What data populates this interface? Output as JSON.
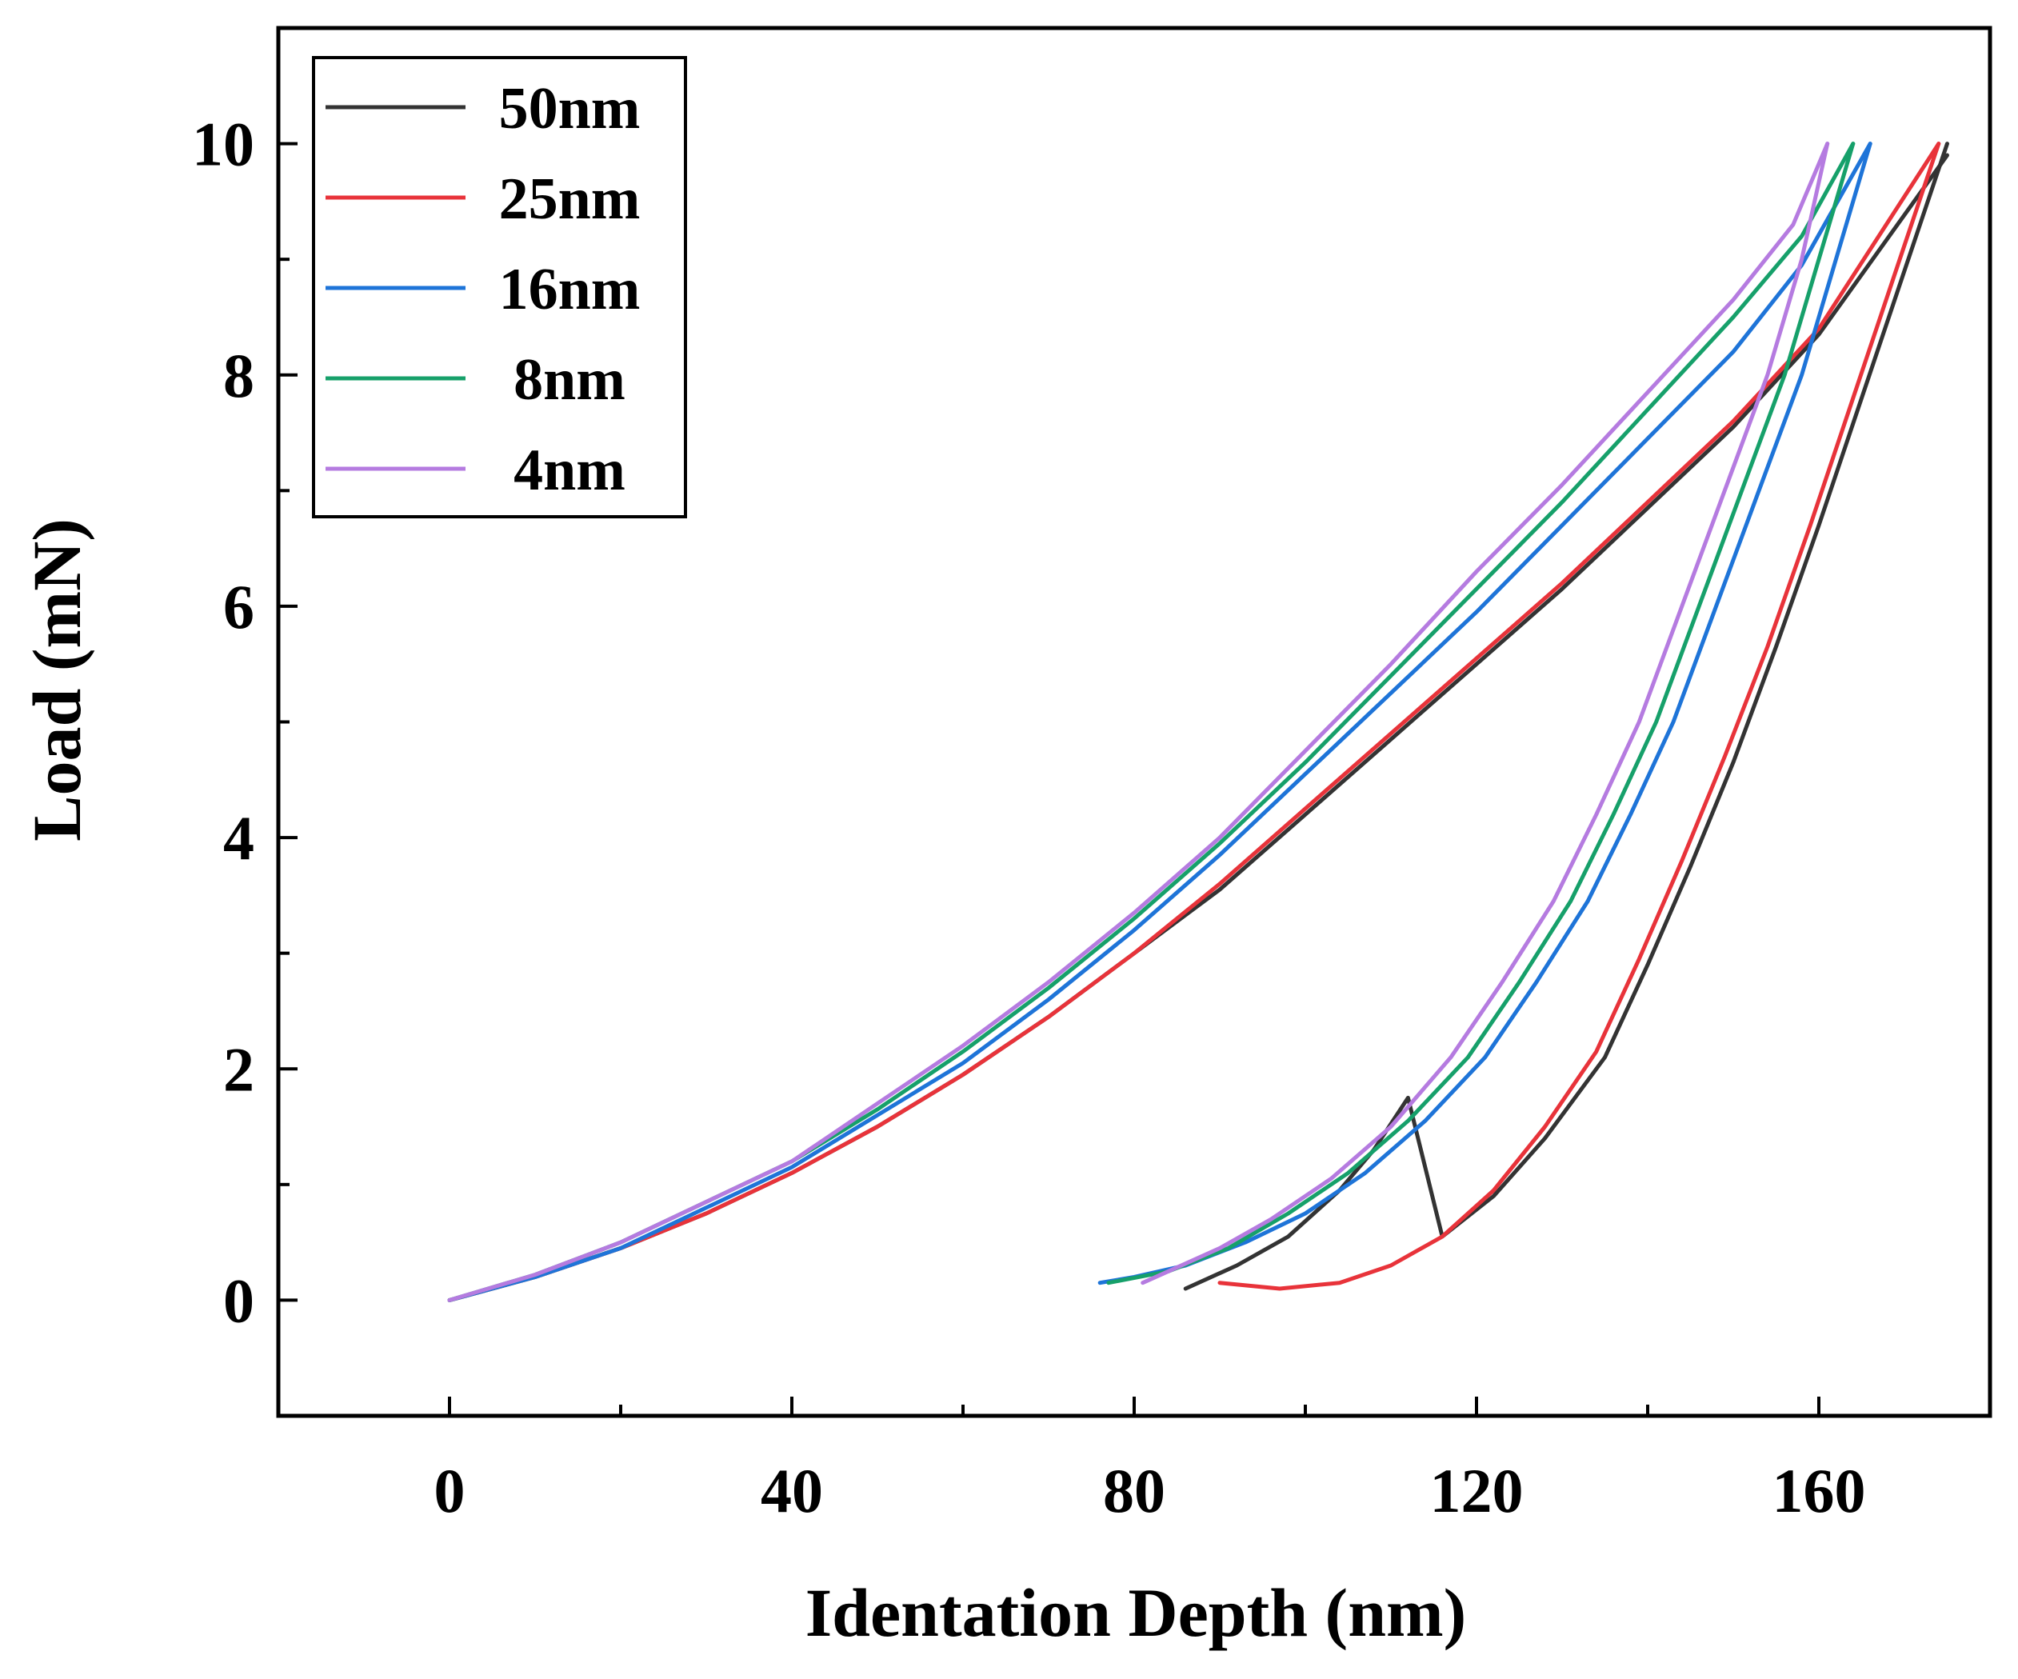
{
  "chart_data": {
    "type": "line",
    "title": "",
    "xlabel": "Identation Depth (nm)",
    "ylabel": "Load (mN)",
    "xlim": [
      -20,
      180
    ],
    "ylim": [
      -1,
      11
    ],
    "xticks": [
      0,
      40,
      80,
      120,
      160
    ],
    "xtick_labels": [
      "0",
      "40",
      "80",
      "120",
      "160"
    ],
    "xminor": [
      20,
      60,
      100,
      140,
      180
    ],
    "yticks": [
      0,
      2,
      4,
      6,
      8,
      10
    ],
    "ytick_labels": [
      "0",
      "2",
      "4",
      "6",
      "8",
      "10"
    ],
    "yminor": [
      1,
      3,
      5,
      7,
      9
    ],
    "grid": false,
    "legend_position": "top-left",
    "series": [
      {
        "name": "50nm",
        "color": "#333333",
        "loading": [
          [
            0,
            0
          ],
          [
            10,
            0.2
          ],
          [
            20,
            0.45
          ],
          [
            30,
            0.75
          ],
          [
            40,
            1.1
          ],
          [
            50,
            1.5
          ],
          [
            60,
            1.95
          ],
          [
            70,
            2.45
          ],
          [
            80,
            3.0
          ],
          [
            90,
            3.55
          ],
          [
            100,
            4.2
          ],
          [
            110,
            4.85
          ],
          [
            120,
            5.5
          ],
          [
            130,
            6.15
          ],
          [
            140,
            6.85
          ],
          [
            150,
            7.55
          ],
          [
            160,
            8.35
          ],
          [
            175,
            9.9
          ]
        ],
        "unloading": [
          [
            175,
            10.0
          ],
          [
            170,
            8.9
          ],
          [
            165,
            7.8
          ],
          [
            160,
            6.7
          ],
          [
            155,
            5.65
          ],
          [
            150,
            4.65
          ],
          [
            145,
            3.75
          ],
          [
            140,
            2.9
          ],
          [
            135,
            2.1
          ],
          [
            128,
            1.4
          ],
          [
            122,
            0.9
          ],
          [
            116,
            0.55
          ],
          [
            112,
            1.75
          ],
          [
            108,
            1.3
          ],
          [
            104,
            0.95
          ],
          [
            98,
            0.55
          ],
          [
            92,
            0.3
          ],
          [
            86,
            0.1
          ]
        ]
      },
      {
        "name": "25nm",
        "color": "#e8333a",
        "loading": [
          [
            0,
            0
          ],
          [
            10,
            0.2
          ],
          [
            20,
            0.45
          ],
          [
            30,
            0.75
          ],
          [
            40,
            1.1
          ],
          [
            50,
            1.5
          ],
          [
            60,
            1.95
          ],
          [
            70,
            2.45
          ],
          [
            80,
            3.0
          ],
          [
            90,
            3.6
          ],
          [
            100,
            4.25
          ],
          [
            110,
            4.9
          ],
          [
            120,
            5.55
          ],
          [
            130,
            6.2
          ],
          [
            140,
            6.9
          ],
          [
            150,
            7.6
          ],
          [
            160,
            8.4
          ],
          [
            174,
            10.0
          ]
        ],
        "unloading": [
          [
            174,
            10.0
          ],
          [
            169,
            8.9
          ],
          [
            164,
            7.8
          ],
          [
            159,
            6.7
          ],
          [
            154,
            5.65
          ],
          [
            149,
            4.7
          ],
          [
            144,
            3.8
          ],
          [
            139,
            2.95
          ],
          [
            134,
            2.15
          ],
          [
            128,
            1.5
          ],
          [
            122,
            0.95
          ],
          [
            116,
            0.55
          ],
          [
            110,
            0.3
          ],
          [
            104,
            0.15
          ],
          [
            97,
            0.1
          ],
          [
            90,
            0.15
          ]
        ]
      },
      {
        "name": "16nm",
        "color": "#1e74d8",
        "loading": [
          [
            0,
            0
          ],
          [
            10,
            0.2
          ],
          [
            20,
            0.45
          ],
          [
            30,
            0.8
          ],
          [
            40,
            1.15
          ],
          [
            50,
            1.6
          ],
          [
            60,
            2.05
          ],
          [
            70,
            2.6
          ],
          [
            80,
            3.2
          ],
          [
            90,
            3.85
          ],
          [
            100,
            4.55
          ],
          [
            110,
            5.25
          ],
          [
            120,
            5.95
          ],
          [
            130,
            6.7
          ],
          [
            140,
            7.45
          ],
          [
            150,
            8.2
          ],
          [
            158,
            8.95
          ],
          [
            166,
            10.0
          ]
        ],
        "unloading": [
          [
            166,
            10.0
          ],
          [
            162,
            9.0
          ],
          [
            158,
            8.0
          ],
          [
            153,
            7.0
          ],
          [
            148,
            6.0
          ],
          [
            143,
            5.0
          ],
          [
            138,
            4.2
          ],
          [
            133,
            3.45
          ],
          [
            127,
            2.75
          ],
          [
            121,
            2.1
          ],
          [
            114,
            1.55
          ],
          [
            107,
            1.1
          ],
          [
            100,
            0.75
          ],
          [
            93,
            0.5
          ],
          [
            86,
            0.3
          ],
          [
            80,
            0.2
          ],
          [
            76,
            0.15
          ]
        ]
      },
      {
        "name": "8nm",
        "color": "#16a06a",
        "loading": [
          [
            0,
            0
          ],
          [
            10,
            0.22
          ],
          [
            20,
            0.5
          ],
          [
            30,
            0.85
          ],
          [
            40,
            1.2
          ],
          [
            50,
            1.65
          ],
          [
            60,
            2.15
          ],
          [
            70,
            2.7
          ],
          [
            80,
            3.3
          ],
          [
            90,
            3.95
          ],
          [
            100,
            4.65
          ],
          [
            110,
            5.4
          ],
          [
            120,
            6.15
          ],
          [
            130,
            6.9
          ],
          [
            140,
            7.7
          ],
          [
            150,
            8.5
          ],
          [
            158,
            9.2
          ],
          [
            164,
            10.0
          ]
        ],
        "unloading": [
          [
            164,
            10.0
          ],
          [
            160,
            9.0
          ],
          [
            156,
            8.0
          ],
          [
            151,
            7.0
          ],
          [
            146,
            6.0
          ],
          [
            141,
            5.0
          ],
          [
            136,
            4.2
          ],
          [
            131,
            3.45
          ],
          [
            125,
            2.75
          ],
          [
            119,
            2.1
          ],
          [
            112,
            1.55
          ],
          [
            105,
            1.1
          ],
          [
            98,
            0.75
          ],
          [
            91,
            0.45
          ],
          [
            84,
            0.25
          ],
          [
            77,
            0.15
          ]
        ]
      },
      {
        "name": "4nm",
        "color": "#b57be0",
        "loading": [
          [
            0,
            0
          ],
          [
            10,
            0.22
          ],
          [
            20,
            0.5
          ],
          [
            30,
            0.85
          ],
          [
            40,
            1.2
          ],
          [
            50,
            1.7
          ],
          [
            60,
            2.2
          ],
          [
            70,
            2.75
          ],
          [
            80,
            3.35
          ],
          [
            90,
            4.0
          ],
          [
            100,
            4.75
          ],
          [
            110,
            5.5
          ],
          [
            120,
            6.3
          ],
          [
            130,
            7.05
          ],
          [
            140,
            7.85
          ],
          [
            150,
            8.65
          ],
          [
            157,
            9.3
          ],
          [
            161,
            10.0
          ]
        ],
        "unloading": [
          [
            161,
            10.0
          ],
          [
            158,
            9.0
          ],
          [
            154,
            8.0
          ],
          [
            149,
            7.0
          ],
          [
            144,
            6.0
          ],
          [
            139,
            5.0
          ],
          [
            134,
            4.2
          ],
          [
            129,
            3.45
          ],
          [
            123,
            2.75
          ],
          [
            117,
            2.1
          ],
          [
            110,
            1.5
          ],
          [
            103,
            1.05
          ],
          [
            96,
            0.7
          ],
          [
            90,
            0.45
          ],
          [
            84,
            0.25
          ],
          [
            81,
            0.15
          ]
        ]
      }
    ]
  }
}
